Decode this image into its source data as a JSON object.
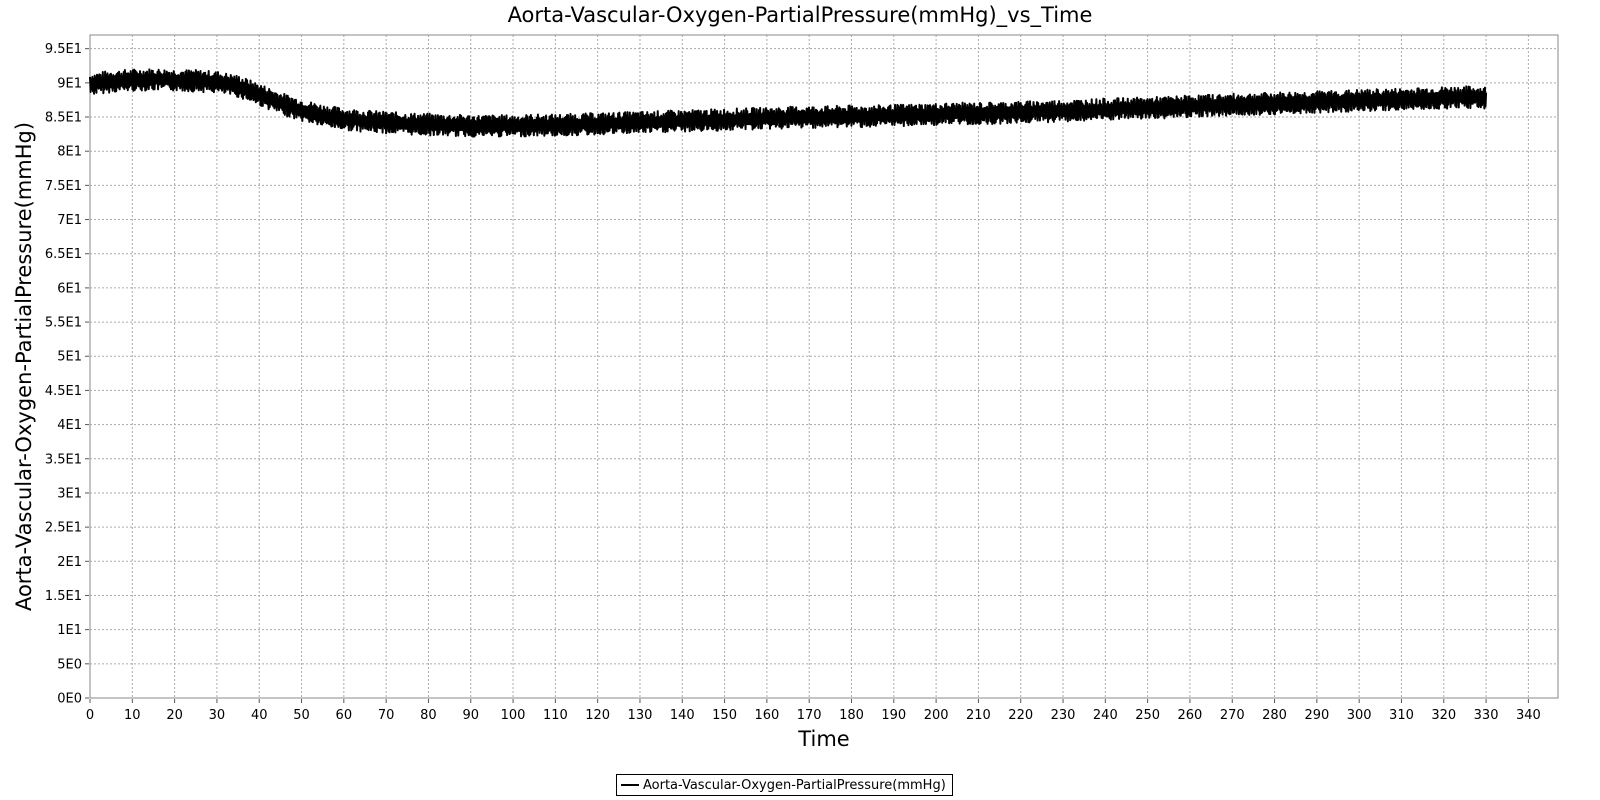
{
  "chart_data": {
    "type": "line",
    "title": "Aorta-Vascular-Oxygen-PartialPressure(mmHg)_vs_Time",
    "xlabel": "Time",
    "ylabel": "Aorta-Vascular-Oxygen-PartialPressure(mmHg)",
    "xlim": [
      0,
      347
    ],
    "ylim": [
      0,
      97
    ],
    "x_ticks": [
      0,
      10,
      20,
      30,
      40,
      50,
      60,
      70,
      80,
      90,
      100,
      110,
      120,
      130,
      140,
      150,
      160,
      170,
      180,
      190,
      200,
      210,
      220,
      230,
      240,
      250,
      260,
      270,
      280,
      290,
      300,
      310,
      320,
      330,
      340
    ],
    "y_ticks": [
      0,
      5,
      10,
      15,
      20,
      25,
      30,
      35,
      40,
      45,
      50,
      55,
      60,
      65,
      70,
      75,
      80,
      85,
      90,
      95
    ],
    "y_tick_labels": [
      "0E0",
      "5E0",
      "1E1",
      "1.5E1",
      "2E1",
      "2.5E1",
      "3E1",
      "3.5E1",
      "4E1",
      "4.5E1",
      "5E1",
      "5.5E1",
      "6E1",
      "6.5E1",
      "7E1",
      "7.5E1",
      "8E1",
      "8.5E1",
      "9E1",
      "9.5E1"
    ],
    "grid": true,
    "legend": "bottom-center",
    "series": [
      {
        "name": "Aorta-Vascular-Oxygen-PartialPressure(mmHg)",
        "color": "#000000",
        "noise_band": 1.6,
        "x": [
          0,
          5,
          10,
          15,
          20,
          25,
          30,
          35,
          40,
          45,
          50,
          55,
          60,
          65,
          70,
          75,
          80,
          85,
          90,
          95,
          100,
          105,
          110,
          115,
          120,
          125,
          130,
          135,
          140,
          145,
          150,
          155,
          160,
          165,
          170,
          175,
          180,
          185,
          190,
          195,
          200,
          205,
          210,
          215,
          220,
          225,
          230,
          235,
          240,
          245,
          250,
          255,
          260,
          265,
          270,
          275,
          280,
          285,
          290,
          295,
          300,
          305,
          310,
          315,
          320,
          325,
          330
        ],
        "y": [
          89.8,
          90.2,
          90.4,
          90.5,
          90.4,
          90.3,
          90.1,
          89.5,
          88.3,
          87.0,
          86.0,
          85.2,
          84.7,
          84.4,
          84.2,
          84.0,
          83.9,
          83.8,
          83.7,
          83.7,
          83.7,
          83.8,
          83.8,
          83.9,
          84.0,
          84.1,
          84.2,
          84.3,
          84.4,
          84.5,
          84.6,
          84.7,
          84.8,
          84.9,
          85.0,
          85.0,
          85.1,
          85.1,
          85.2,
          85.3,
          85.4,
          85.5,
          85.5,
          85.6,
          85.7,
          85.8,
          85.9,
          86.0,
          86.1,
          86.2,
          86.3,
          86.4,
          86.6,
          86.7,
          86.8,
          86.9,
          87.0,
          87.1,
          87.2,
          87.3,
          87.4,
          87.5,
          87.6,
          87.7,
          87.8,
          87.9,
          87.8
        ]
      }
    ]
  }
}
